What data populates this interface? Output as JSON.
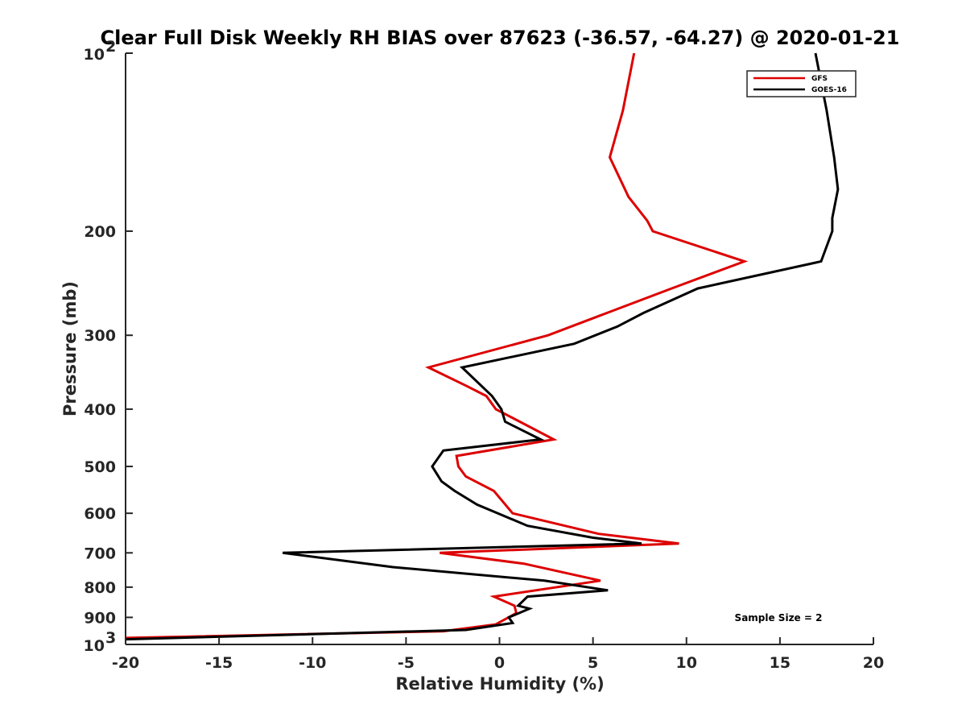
{
  "chart_data": {
    "type": "line",
    "title": "Clear Full Disk Weekly RH BIAS over 87623 (-36.57, -64.27) @ 2020-01-21",
    "xlabel": "Relative Humidity (%)",
    "ylabel": "Pressure (mb)",
    "xlim": [
      -20,
      20
    ],
    "ylim": [
      100,
      1000
    ],
    "y_scale": "log",
    "y_reversed": true,
    "x_ticks": [
      "-20",
      "-15",
      "-10",
      "-5",
      "0",
      "5",
      "10",
      "15",
      "20"
    ],
    "x_tick_values": [
      -20,
      -15,
      -10,
      -5,
      0,
      5,
      10,
      15,
      20
    ],
    "y_ticks": [
      {
        "value": 100,
        "base": "10",
        "exp": "2"
      },
      {
        "value": 200,
        "base": "200",
        "exp": ""
      },
      {
        "value": 300,
        "base": "300",
        "exp": ""
      },
      {
        "value": 400,
        "base": "400",
        "exp": ""
      },
      {
        "value": 500,
        "base": "500",
        "exp": ""
      },
      {
        "value": 600,
        "base": "600",
        "exp": ""
      },
      {
        "value": 700,
        "base": "700",
        "exp": ""
      },
      {
        "value": 800,
        "base": "800",
        "exp": ""
      },
      {
        "value": 900,
        "base": "900",
        "exp": ""
      },
      {
        "value": 1000,
        "base": "10",
        "exp": "3"
      }
    ],
    "legend_position": "top-right",
    "grid": false,
    "annotation": "Sample Size = 2",
    "series": [
      {
        "name": "GFS",
        "color": "#dd0000",
        "points": [
          [
            7.2,
            100
          ],
          [
            6.6,
            125
          ],
          [
            5.9,
            150
          ],
          [
            6.9,
            175
          ],
          [
            7.9,
            192
          ],
          [
            8.2,
            200
          ],
          [
            13.1,
            225
          ],
          [
            9.2,
            250
          ],
          [
            5.1,
            280
          ],
          [
            2.6,
            300
          ],
          [
            -3.8,
            340
          ],
          [
            -1.8,
            365
          ],
          [
            -0.7,
            380
          ],
          [
            -0.2,
            400
          ],
          [
            2.9,
            450
          ],
          [
            -2.3,
            480
          ],
          [
            -2.2,
            500
          ],
          [
            -1.8,
            520
          ],
          [
            -0.3,
            550
          ],
          [
            0.7,
            600
          ],
          [
            5.3,
            650
          ],
          [
            9.6,
            675
          ],
          [
            -3.2,
            700
          ],
          [
            1.3,
            730
          ],
          [
            5.4,
            780
          ],
          [
            -0.3,
            830
          ],
          [
            0.8,
            860
          ],
          [
            0.9,
            885
          ],
          [
            -0.2,
            925
          ],
          [
            -3.0,
            950
          ],
          [
            -20,
            975
          ]
        ]
      },
      {
        "name": "GOES-16",
        "color": "#000000",
        "points": [
          [
            16.9,
            100
          ],
          [
            17.5,
            125
          ],
          [
            17.9,
            150
          ],
          [
            18.1,
            170
          ],
          [
            17.8,
            190
          ],
          [
            17.8,
            200
          ],
          [
            17.2,
            225
          ],
          [
            10.6,
            250
          ],
          [
            7.7,
            275
          ],
          [
            6.3,
            290
          ],
          [
            4.0,
            310
          ],
          [
            -2.0,
            340
          ],
          [
            -0.4,
            380
          ],
          [
            0.1,
            400
          ],
          [
            0.3,
            420
          ],
          [
            2.2,
            450
          ],
          [
            -3.0,
            470
          ],
          [
            -3.6,
            500
          ],
          [
            -3.1,
            530
          ],
          [
            -2.4,
            550
          ],
          [
            -1.2,
            580
          ],
          [
            1.5,
            630
          ],
          [
            5.0,
            660
          ],
          [
            7.6,
            675
          ],
          [
            -11.6,
            700
          ],
          [
            -5.7,
            740
          ],
          [
            2.4,
            780
          ],
          [
            5.8,
            810
          ],
          [
            1.5,
            830
          ],
          [
            1.0,
            860
          ],
          [
            1.6,
            870
          ],
          [
            0.5,
            900
          ],
          [
            0.7,
            920
          ],
          [
            -1.8,
            945
          ],
          [
            -20,
            980
          ]
        ]
      }
    ]
  }
}
